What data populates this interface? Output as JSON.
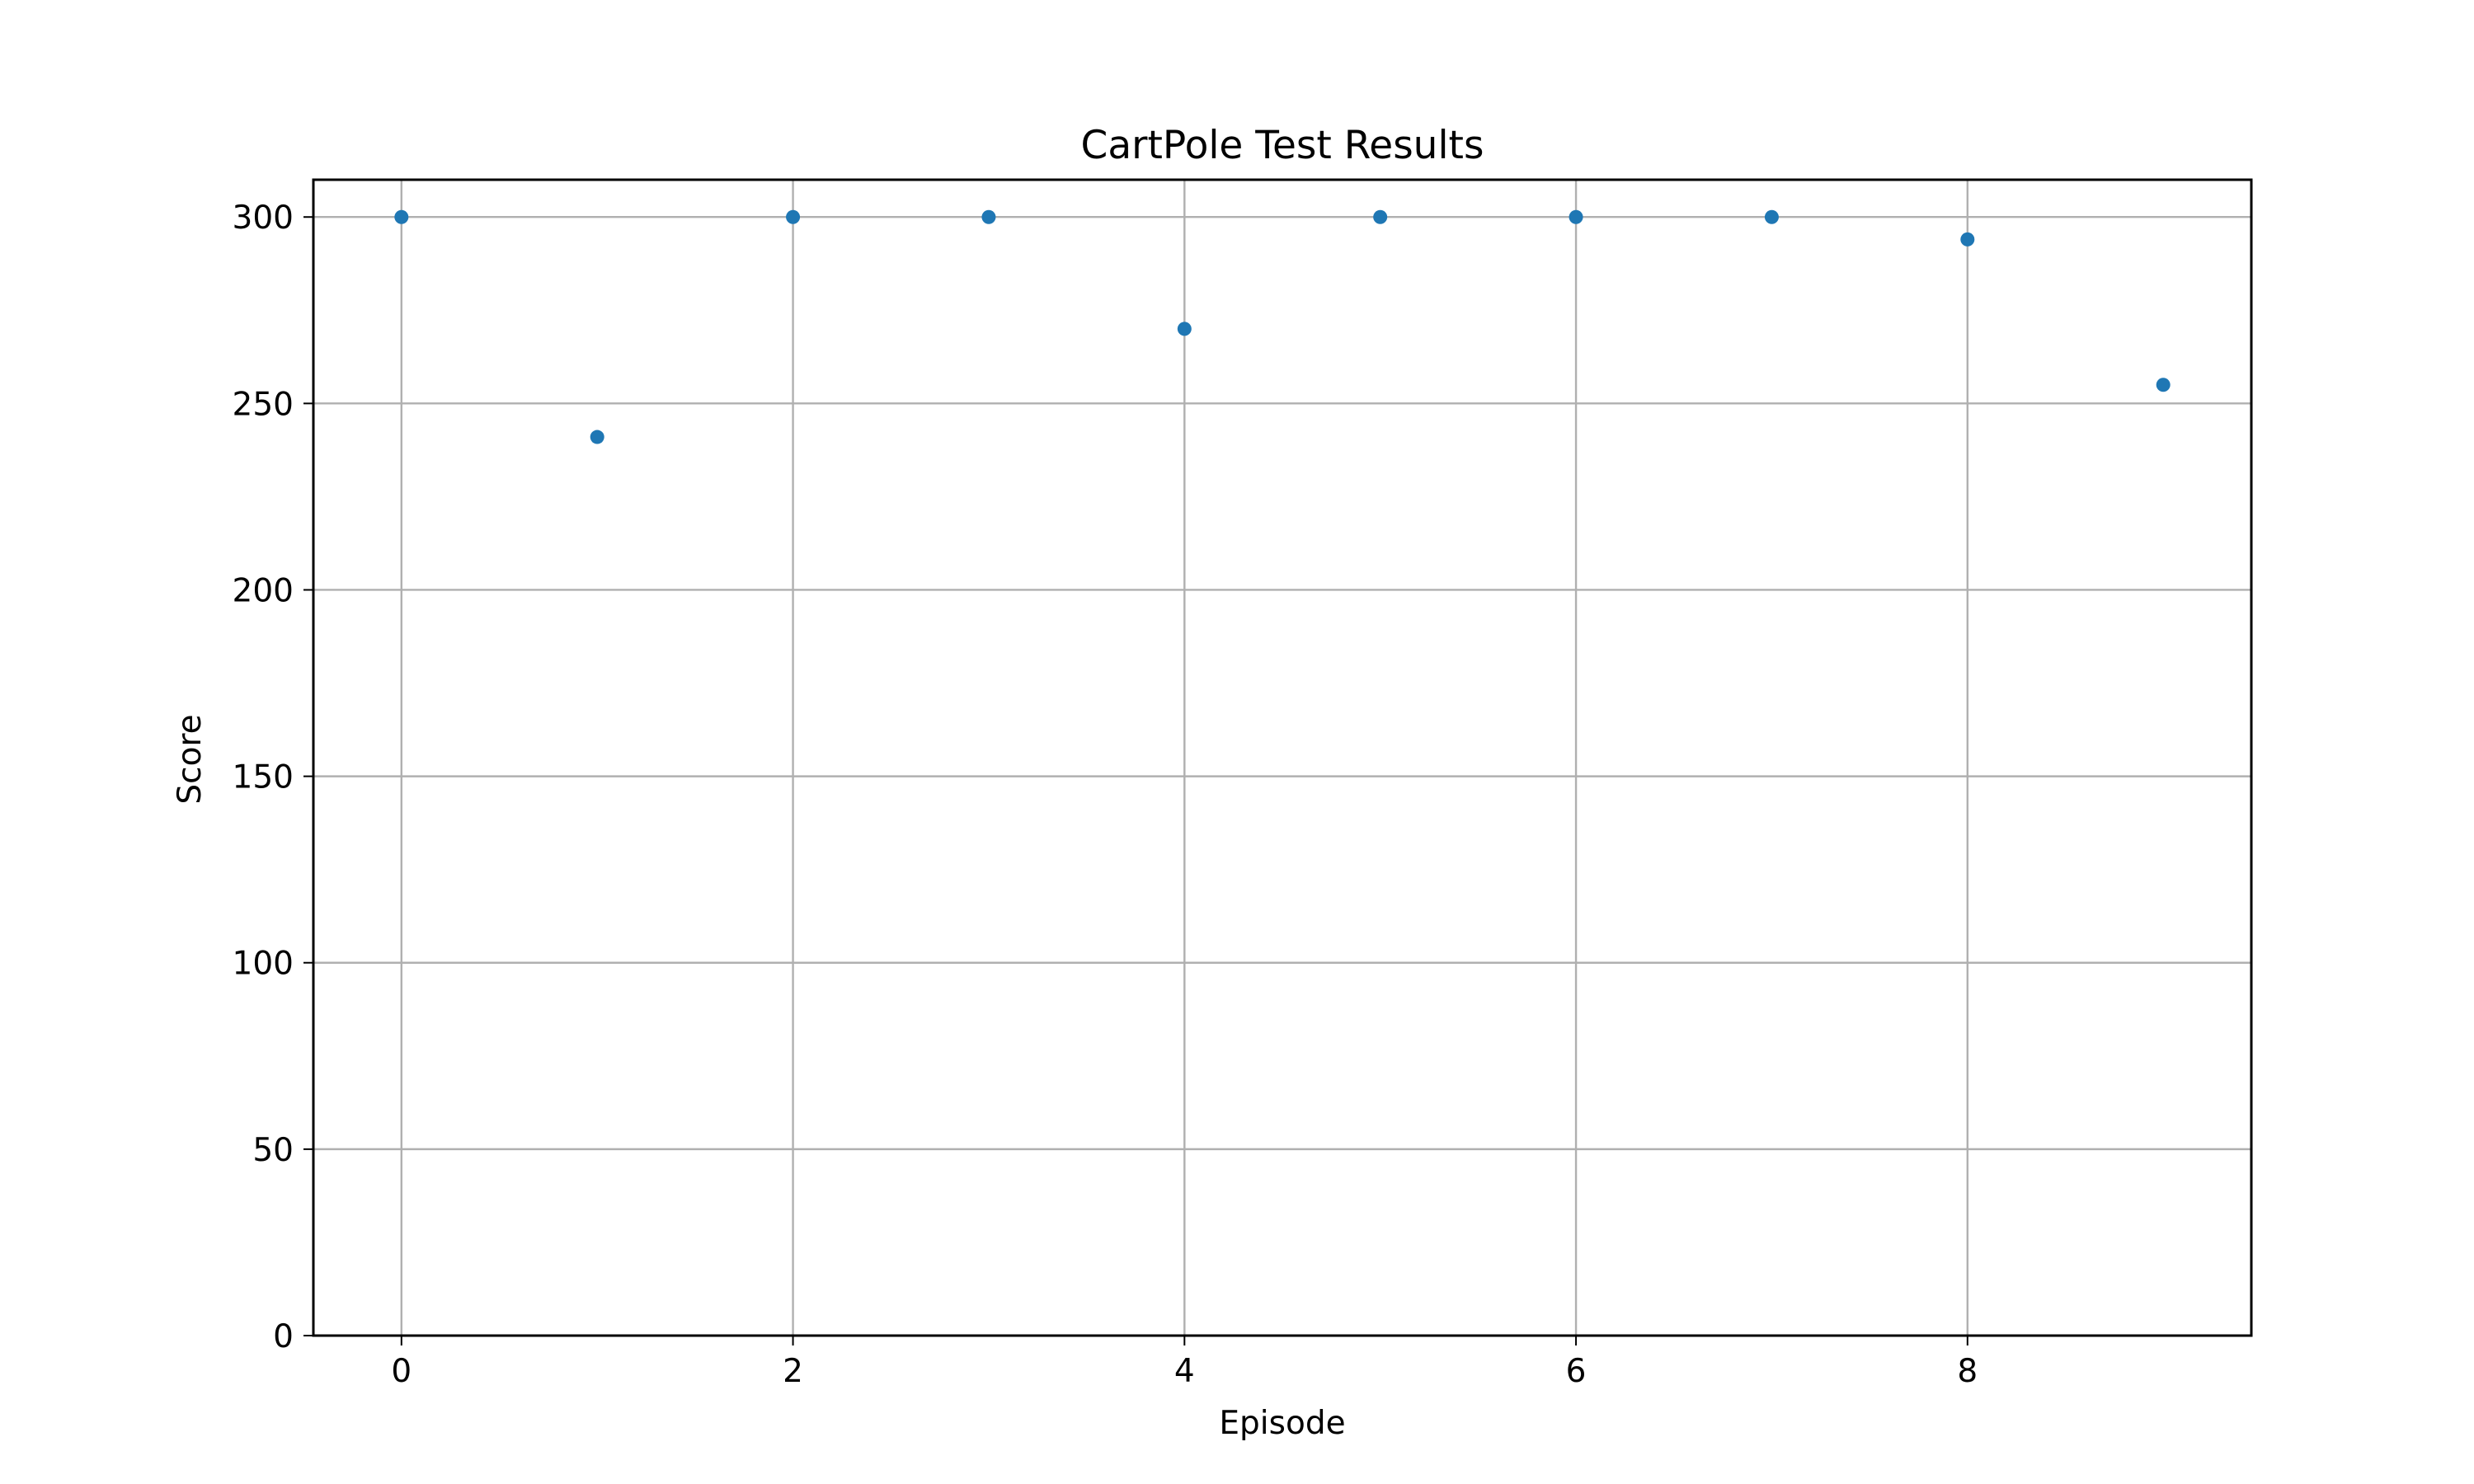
{
  "chart_data": {
    "type": "scatter",
    "title": "CartPole Test Results",
    "xlabel": "Episode",
    "ylabel": "Score",
    "xlim": [
      -0.45,
      9.45
    ],
    "ylim": [
      0,
      310
    ],
    "xticks": [
      0,
      2,
      4,
      6,
      8
    ],
    "yticks": [
      0,
      50,
      100,
      150,
      200,
      250,
      300
    ],
    "grid": true,
    "series": [
      {
        "x": [
          0,
          1,
          2,
          3,
          4,
          5,
          6,
          7,
          8,
          9
        ],
        "y": [
          300,
          241,
          300,
          300,
          270,
          300,
          300,
          300,
          294,
          255
        ],
        "color": "#1f77b4"
      }
    ]
  }
}
